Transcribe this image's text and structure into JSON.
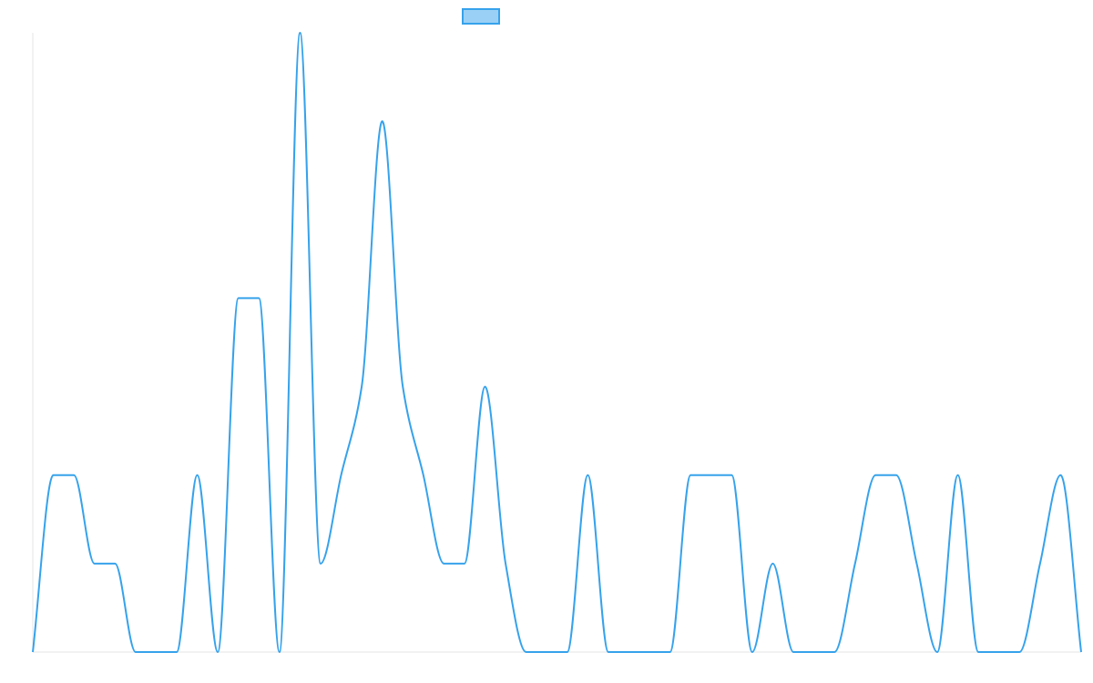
{
  "chart_data": {
    "type": "line",
    "title": "",
    "xlabel": "",
    "ylabel": "",
    "grid": false,
    "legend": {
      "placement": "top-center",
      "label": ""
    },
    "colors": {
      "line": "#36a2eb",
      "legend_fill": "#9ad0f5",
      "axis": "#e6e6e6"
    },
    "x": [
      0,
      1,
      2,
      3,
      4,
      5,
      6,
      7,
      8,
      9,
      10,
      11,
      12,
      13,
      14,
      15,
      16,
      17,
      18,
      19,
      20,
      21,
      22,
      23,
      24,
      25,
      26,
      27,
      28,
      29,
      30,
      31,
      32,
      33,
      34,
      35,
      36,
      37,
      38,
      39,
      40,
      41,
      42,
      43,
      44,
      45,
      46,
      47,
      48,
      49,
      50,
      51
    ],
    "values": [
      0,
      2,
      2,
      1,
      1,
      0,
      0,
      0,
      2,
      0,
      4,
      4,
      0,
      7,
      1,
      2,
      3,
      6,
      3,
      2,
      1,
      1,
      3,
      1,
      0,
      0,
      0,
      2,
      0,
      0,
      0,
      0,
      2,
      2,
      2,
      0,
      1,
      0,
      0,
      0,
      1,
      2,
      2,
      1,
      0,
      2,
      0,
      0,
      0,
      1,
      2,
      0
    ],
    "xlim": [
      0,
      51
    ],
    "ylim": [
      0,
      7
    ]
  }
}
